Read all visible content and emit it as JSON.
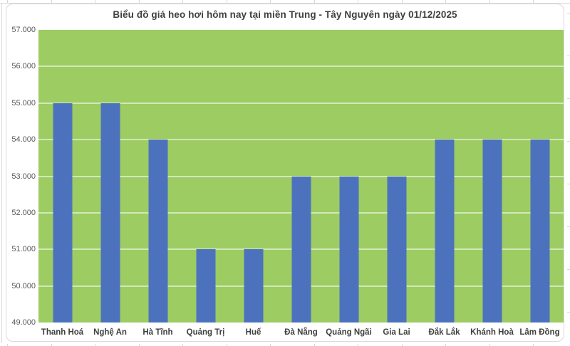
{
  "chart_data": {
    "type": "bar",
    "title": "Biểu đồ giá heo hơi hôm nay tại miền Trung - Tây Nguyên ngày 01/12/2025",
    "categories": [
      "Thanh Hoá",
      "Nghệ An",
      "Hà Tĩnh",
      "Quảng Trị",
      "Huế",
      "Đà Nẵng",
      "Quảng Ngãi",
      "Gia Lai",
      "Đắk Lắk",
      "Khánh Hoà",
      "Lâm Đồng"
    ],
    "values": [
      55000,
      55000,
      54000,
      51000,
      51000,
      53000,
      53000,
      53000,
      54000,
      54000,
      54000
    ],
    "xlabel": "",
    "ylabel": "",
    "ylim": [
      49000,
      57000
    ],
    "ytick_step": 1000,
    "ytick_labels": [
      "49.000",
      "50.000",
      "51.000",
      "52.000",
      "53.000",
      "54.000",
      "55.000",
      "56.000",
      "57.000"
    ],
    "grid": true,
    "legend": false,
    "layout": {
      "legend_position": "none",
      "bar_gap": "wide",
      "plot_fill": "solid-green"
    },
    "colors": {
      "bar": "#4C72BE",
      "plot_background": "#9CCC62",
      "gridline": "rgba(255,255,255,0.55)",
      "title_text": "#404040",
      "axis_text": "#595959",
      "category_text": "#3F3F3F",
      "chart_border": "#D9D9D9",
      "sheet_gridline": "#D8D8D8",
      "page_background": "#FFFFFF"
    }
  }
}
